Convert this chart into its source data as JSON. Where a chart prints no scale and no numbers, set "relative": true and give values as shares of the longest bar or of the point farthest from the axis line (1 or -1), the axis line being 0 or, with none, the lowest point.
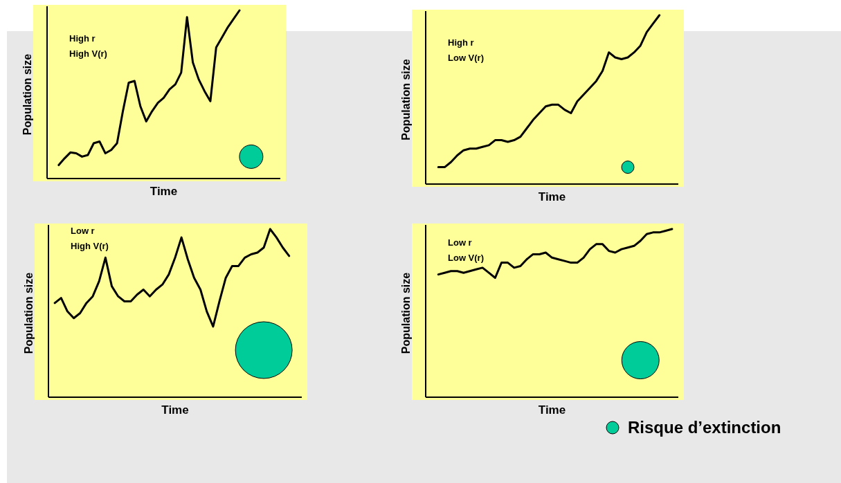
{
  "chart_data": [
    {
      "type": "line",
      "relative": true,
      "xlabel": "Time",
      "ylabel": "Population size",
      "annotations": [
        "High r",
        "High V(r)"
      ],
      "categories": [
        null,
        null,
        null,
        null,
        null,
        null,
        null,
        null,
        null,
        null,
        null,
        null,
        null,
        null,
        null,
        null,
        null,
        null,
        null,
        null,
        null,
        null,
        null,
        null,
        null,
        null,
        null,
        null,
        null,
        null,
        null,
        null
      ],
      "series": [
        {
          "color": "#000000",
          "values": [
            0.08,
            0.12,
            0.155,
            0.15,
            0.13,
            0.14,
            0.21,
            0.22,
            0.15,
            0.17,
            0.21,
            0.4,
            0.57,
            0.58,
            0.43,
            0.34,
            0.4,
            0.45,
            0.48,
            0.53,
            0.56,
            0.63,
            0.96,
            0.69,
            0.59,
            0.52,
            0.46,
            0.78,
            0.84,
            0.9,
            0.95,
            1.0
          ]
        }
      ]
    },
    {
      "type": "line",
      "relative": true,
      "xlabel": "Time",
      "ylabel": "Population size",
      "annotations": [
        "High r",
        "Low V(r)"
      ],
      "categories": [
        null,
        null,
        null,
        null,
        null,
        null,
        null,
        null,
        null,
        null,
        null,
        null,
        null,
        null,
        null,
        null,
        null,
        null,
        null,
        null,
        null,
        null,
        null,
        null,
        null,
        null,
        null,
        null,
        null,
        null,
        null,
        null,
        null,
        null,
        null,
        null
      ],
      "series": [
        {
          "color": "#000000",
          "values": [
            0.1,
            0.1,
            0.13,
            0.17,
            0.2,
            0.21,
            0.21,
            0.22,
            0.23,
            0.26,
            0.26,
            0.25,
            0.26,
            0.28,
            0.33,
            0.38,
            0.42,
            0.46,
            0.47,
            0.47,
            0.44,
            0.42,
            0.49,
            0.53,
            0.57,
            0.61,
            0.67,
            0.78,
            0.75,
            0.74,
            0.75,
            0.78,
            0.82,
            0.9,
            0.95,
            1.0
          ]
        }
      ]
    },
    {
      "type": "line",
      "relative": true,
      "xlabel": "Time",
      "ylabel": "Population size",
      "annotations": [
        "Low r",
        "High V(r)"
      ],
      "categories": [
        null,
        null,
        null,
        null,
        null,
        null,
        null,
        null,
        null,
        null,
        null,
        null,
        null,
        null,
        null,
        null,
        null,
        null,
        null,
        null,
        null,
        null,
        null,
        null,
        null,
        null,
        null,
        null,
        null,
        null,
        null,
        null,
        null,
        null,
        null,
        null,
        null,
        null
      ],
      "series": [
        {
          "color": "#000000",
          "values": [
            0.56,
            0.59,
            0.51,
            0.47,
            0.5,
            0.56,
            0.6,
            0.69,
            0.83,
            0.66,
            0.6,
            0.57,
            0.57,
            0.61,
            0.64,
            0.6,
            0.64,
            0.67,
            0.73,
            0.83,
            0.95,
            0.82,
            0.71,
            0.64,
            0.51,
            0.42,
            0.57,
            0.71,
            0.78,
            0.78,
            0.83,
            0.85,
            0.86,
            0.89,
            1.0,
            0.95,
            0.89,
            0.84
          ]
        }
      ]
    },
    {
      "type": "line",
      "relative": true,
      "xlabel": "Time",
      "ylabel": "Population size",
      "annotations": [
        "Low r",
        "Low V(r)",
        "Risque d’extinction"
      ],
      "categories": [
        null,
        null,
        null,
        null,
        null,
        null,
        null,
        null,
        null,
        null,
        null,
        null,
        null,
        null,
        null,
        null,
        null,
        null,
        null,
        null,
        null,
        null,
        null,
        null,
        null,
        null,
        null,
        null,
        null,
        null,
        null,
        null,
        null,
        null,
        null,
        null,
        null,
        null
      ],
      "series": [
        {
          "color": "#000000",
          "values": [
            0.73,
            0.74,
            0.75,
            0.75,
            0.74,
            0.75,
            0.76,
            0.77,
            0.74,
            0.71,
            0.8,
            0.8,
            0.77,
            0.78,
            0.82,
            0.85,
            0.85,
            0.86,
            0.83,
            0.82,
            0.81,
            0.8,
            0.8,
            0.83,
            0.88,
            0.91,
            0.91,
            0.87,
            0.86,
            0.88,
            0.89,
            0.9,
            0.93,
            0.97,
            0.98,
            0.98,
            0.99,
            1.0
          ]
        }
      ]
    }
  ]
}
